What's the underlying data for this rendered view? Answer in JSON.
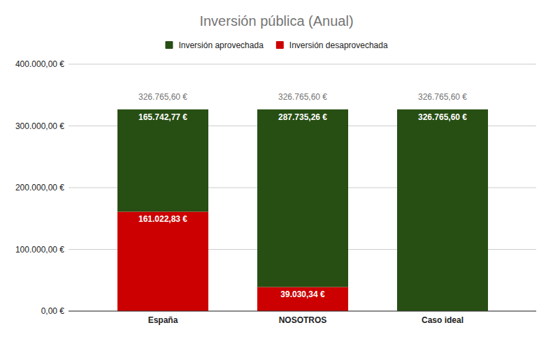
{
  "chart_data": {
    "type": "bar",
    "title": "Inversión pública (Anual)",
    "categories": [
      "España",
      "NOSOTROS",
      "Caso ideal"
    ],
    "series": [
      {
        "name": "Inversión aprovechada",
        "color": "#274e13",
        "values": [
          165742.77,
          287735.26,
          326765.6
        ],
        "value_labels": [
          "165.742,77 €",
          "287.735,26 €",
          "326.765,60 €"
        ]
      },
      {
        "name": "Inversión desaprovechada",
        "color": "#cc0000",
        "values": [
          161022.83,
          39030.34,
          0
        ],
        "value_labels": [
          "161.022,83 €",
          "39.030,34 €",
          null
        ]
      }
    ],
    "totals": [
      326765.6,
      326765.6,
      326765.6
    ],
    "total_labels": [
      "326.765,60 €",
      "326.765,60 €",
      "326.765,60 €"
    ],
    "ylim": [
      0,
      400000
    ],
    "yticks": [
      {
        "value": 0,
        "label": "0,00 €"
      },
      {
        "value": 100000,
        "label": "100.000,00 €"
      },
      {
        "value": 200000,
        "label": "200.000,00 €"
      },
      {
        "value": 300000,
        "label": "300.000,00 €"
      },
      {
        "value": 400000,
        "label": "400.000,00 €"
      }
    ],
    "grid": true,
    "stacked": true,
    "data_labels": true,
    "legend": "top"
  }
}
